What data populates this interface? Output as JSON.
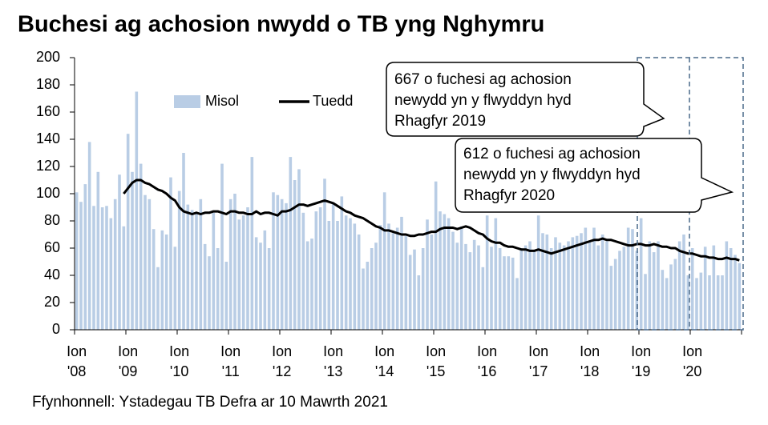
{
  "chart_data": {
    "type": "bar-line",
    "title": "Buchesi ag achosion nwydd o TB yng Nghymru",
    "source": "Ffynhonnell: Ystadegau TB Defra ar 10 Mawrth 2021",
    "categories": [
      "Ion '08",
      null,
      null,
      null,
      null,
      null,
      null,
      null,
      null,
      null,
      null,
      null,
      "Ion '09",
      null,
      null,
      null,
      null,
      null,
      null,
      null,
      null,
      null,
      null,
      null,
      "Ion '10",
      null,
      null,
      null,
      null,
      null,
      null,
      null,
      null,
      null,
      null,
      null,
      "Ion '11",
      null,
      null,
      null,
      null,
      null,
      null,
      null,
      null,
      null,
      null,
      null,
      "Ion '12",
      null,
      null,
      null,
      null,
      null,
      null,
      null,
      null,
      null,
      null,
      null,
      "Ion '13",
      null,
      null,
      null,
      null,
      null,
      null,
      null,
      null,
      null,
      null,
      null,
      "Ion '14",
      null,
      null,
      null,
      null,
      null,
      null,
      null,
      null,
      null,
      null,
      null,
      "Ion '15",
      null,
      null,
      null,
      null,
      null,
      null,
      null,
      null,
      null,
      null,
      null,
      "Ion '16",
      null,
      null,
      null,
      null,
      null,
      null,
      null,
      null,
      null,
      null,
      null,
      "Ion '17",
      null,
      null,
      null,
      null,
      null,
      null,
      null,
      null,
      null,
      null,
      null,
      "Ion '18",
      null,
      null,
      null,
      null,
      null,
      null,
      null,
      null,
      null,
      null,
      null,
      "Ion '19",
      null,
      null,
      null,
      null,
      null,
      null,
      null,
      null,
      null,
      null,
      null,
      "Ion '20",
      null,
      null,
      null,
      null,
      null,
      null,
      null,
      null,
      null,
      null,
      null
    ],
    "series": [
      {
        "name": "Misol",
        "color": "#b9cde5",
        "values": [
          101,
          94,
          107,
          138,
          91,
          116,
          90,
          91,
          82,
          96,
          114,
          76,
          144,
          116,
          175,
          122,
          99,
          96,
          74,
          46,
          73,
          70,
          112,
          61,
          102,
          130,
          92,
          88,
          86,
          96,
          63,
          54,
          86,
          60,
          122,
          50,
          96,
          100,
          81,
          84,
          90,
          127,
          68,
          64,
          73,
          60,
          101,
          99,
          96,
          93,
          127,
          110,
          118,
          86,
          65,
          67,
          87,
          90,
          111,
          80,
          93,
          80,
          98,
          84,
          82,
          78,
          70,
          45,
          50,
          60,
          64,
          77,
          101,
          78,
          71,
          75,
          83,
          69,
          55,
          59,
          40,
          60,
          81,
          70,
          109,
          87,
          85,
          82,
          72,
          64,
          76,
          63,
          57,
          66,
          62,
          46,
          84,
          61,
          82,
          60,
          54,
          54,
          53,
          38,
          60,
          62,
          65,
          58,
          84,
          71,
          70,
          60,
          68,
          64,
          62,
          65,
          68,
          69,
          71,
          75,
          65,
          75,
          62,
          70,
          65,
          47,
          52,
          58,
          61,
          75,
          74,
          58,
          82,
          41,
          65,
          57,
          65,
          44,
          38,
          48,
          52,
          65,
          70,
          40,
          60,
          38,
          42,
          61,
          40,
          62,
          40,
          40,
          65,
          60,
          55,
          49
        ]
      },
      {
        "name": "Tuedd",
        "color": "#000000",
        "values": [
          null,
          null,
          null,
          null,
          null,
          null,
          null,
          null,
          null,
          null,
          null,
          100,
          104,
          108,
          110,
          110,
          108,
          107,
          105,
          103,
          102,
          100,
          97,
          95,
          90,
          87,
          86,
          85,
          86,
          85,
          86,
          86,
          87,
          87,
          86,
          85,
          87,
          87,
          86,
          86,
          85,
          85,
          87,
          85,
          86,
          86,
          85,
          84,
          87,
          87,
          88,
          90,
          92,
          92,
          91,
          92,
          93,
          94,
          95,
          94,
          93,
          91,
          89,
          87,
          86,
          84,
          83,
          82,
          80,
          78,
          76,
          75,
          73,
          73,
          72,
          71,
          70,
          70,
          69,
          69,
          70,
          70,
          71,
          72,
          72,
          74,
          75,
          75,
          75,
          74,
          75,
          76,
          75,
          73,
          71,
          70,
          67,
          65,
          64,
          64,
          62,
          61,
          61,
          60,
          59,
          59,
          58,
          58,
          59,
          58,
          57,
          56,
          57,
          58,
          59,
          60,
          61,
          62,
          63,
          64,
          65,
          66,
          66,
          67,
          66,
          66,
          65,
          64,
          63,
          62,
          62,
          63,
          63,
          62,
          62,
          63,
          62,
          61,
          61,
          60,
          60,
          58,
          57,
          56,
          56,
          55,
          54,
          54,
          53,
          53,
          52,
          52,
          53,
          52,
          52,
          51
        ]
      }
    ],
    "ylim": [
      0,
      200
    ],
    "yticks": [
      0,
      20,
      40,
      60,
      80,
      100,
      120,
      140,
      160,
      180,
      200
    ],
    "annotations": [
      {
        "lines": [
          "667 o fuchesi ag achosion",
          "newydd yn y flwyddyn hyd",
          "Rhagfyr 2019"
        ]
      },
      {
        "lines": [
          "612 o fuchesi ag achosion",
          "newydd yn y flwyddyn hyd",
          "Rhagfyr 2020"
        ]
      }
    ]
  }
}
